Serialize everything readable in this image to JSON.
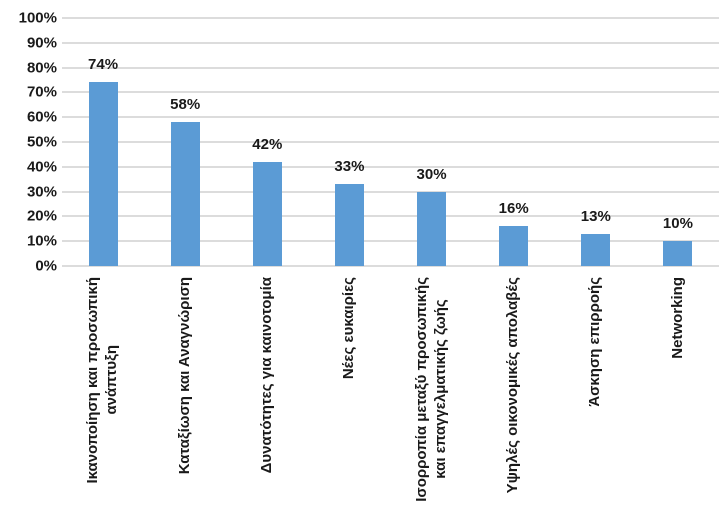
{
  "chart_data": {
    "type": "bar",
    "categories": [
      "Ικανοποίηση και προσωπική\nανάπτυξη",
      "Καταξίωση και Αναγνώριση",
      "Δυνατότητες για καινοτομία",
      "Νέες ευκαιρίες",
      "Ισορροπία μεταξύ προσωπικής\nκαι επαγγελματικής ζωής",
      "Υψηλές οικονομικές απολαβές",
      "Άσκηση επιρροής",
      "Networking"
    ],
    "values": [
      74,
      58,
      42,
      33,
      30,
      16,
      13,
      10
    ],
    "value_labels": [
      "74%",
      "58%",
      "42%",
      "33%",
      "30%",
      "16%",
      "13%",
      "10%"
    ],
    "y_ticks": [
      "100%",
      "90%",
      "80%",
      "70%",
      "60%",
      "50%",
      "40%",
      "30%",
      "20%",
      "10%",
      "0%"
    ],
    "ylim": [
      0,
      100
    ],
    "grid": true,
    "legend_position": "none",
    "title": "",
    "xlabel": "",
    "ylabel": "",
    "bar_color": "#5b9bd5",
    "gridline_color": "#dcdcdc",
    "text_color": "#1a1a1a",
    "background_color": "#ffffff"
  }
}
